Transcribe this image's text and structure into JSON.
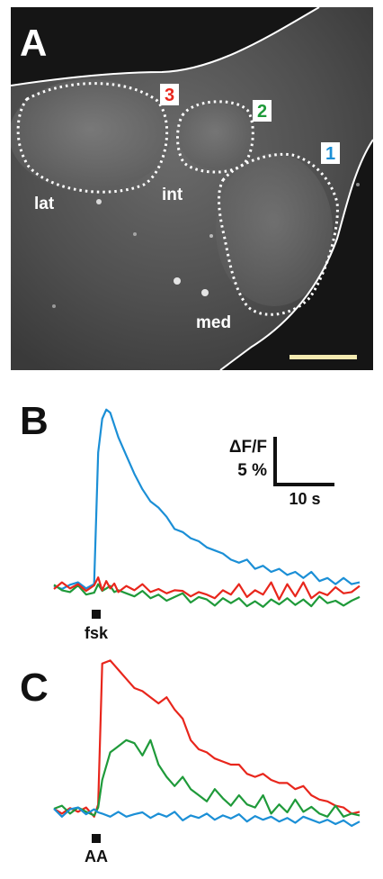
{
  "panels": {
    "a": {
      "label": "A",
      "region_labels": [
        "lat",
        "int",
        "med"
      ],
      "roi_labels": [
        {
          "text": "3",
          "color": "#e8261c"
        },
        {
          "text": "2",
          "color": "#1f9a3a"
        },
        {
          "text": "1",
          "color": "#1b8fd6"
        }
      ]
    },
    "b": {
      "label": "B",
      "stimulus_label": "fsk"
    },
    "c": {
      "label": "C",
      "stimulus_label": "AA"
    }
  },
  "scale_bar": {
    "y_label": "ΔF/F",
    "y_value": "5 %",
    "x_value": "10 s"
  },
  "colors": {
    "roi1": "#1b8fd6",
    "roi2": "#1f9a3a",
    "roi3": "#e8261c"
  },
  "chart_data": [
    {
      "type": "line",
      "panel": "B",
      "x_unit": "s",
      "y_unit": "% ΔF/F",
      "x": [
        0,
        2,
        4,
        6,
        8,
        10,
        11,
        12,
        13,
        14,
        15,
        16,
        18,
        20,
        22,
        24,
        26,
        28,
        30,
        32,
        34,
        36,
        38,
        40,
        42,
        44,
        46,
        48,
        50,
        52,
        54,
        56,
        58,
        60,
        62,
        64,
        66,
        68,
        70,
        72,
        74,
        76
      ],
      "stimulus_x": 10.5,
      "series": [
        {
          "color": "#1b8fd6",
          "values": [
            0.2,
            -0.3,
            0.4,
            0.8,
            -0.2,
            0.5,
            22.0,
            27.5,
            29.0,
            28.5,
            26.5,
            24.5,
            21.5,
            18.5,
            16.0,
            14.0,
            13.0,
            11.5,
            9.5,
            9.0,
            8.0,
            7.5,
            6.5,
            6.0,
            5.5,
            4.5,
            4.0,
            4.5,
            3.0,
            3.5,
            2.5,
            3.0,
            2.0,
            2.5,
            1.5,
            2.5,
            1.0,
            1.5,
            0.5,
            1.5,
            0.5,
            0.8
          ]
        },
        {
          "color": "#1f9a3a",
          "values": [
            0.4,
            -0.5,
            -0.8,
            0.3,
            -1.2,
            -0.9,
            0.5,
            -0.6,
            -0.2,
            0.2,
            -0.8,
            -0.5,
            -1.0,
            -1.5,
            -0.6,
            -1.8,
            -1.2,
            -2.2,
            -1.6,
            -1.0,
            -2.5,
            -1.6,
            -2.0,
            -3.0,
            -1.8,
            -2.6,
            -1.8,
            -3.1,
            -2.3,
            -3.2,
            -2.0,
            -2.8,
            -1.8,
            -2.9,
            -2.0,
            -3.1,
            -1.5,
            -2.6,
            -2.2,
            -3.0,
            -2.2,
            -1.6
          ]
        },
        {
          "color": "#e8261c",
          "values": [
            -0.3,
            0.8,
            -0.2,
            0.5,
            -0.6,
            0.3,
            1.6,
            -0.5,
            1.0,
            -0.2,
            0.6,
            -0.8,
            0.2,
            -0.5,
            0.5,
            -0.8,
            -0.3,
            -1.0,
            -0.5,
            -0.6,
            -1.5,
            -0.8,
            -1.2,
            -1.8,
            -0.5,
            -1.2,
            0.5,
            -1.6,
            -0.5,
            -1.2,
            0.8,
            -2.0,
            0.5,
            -1.5,
            0.8,
            -1.8,
            -0.8,
            -1.3,
            0.0,
            -1.0,
            -0.8,
            0.2
          ]
        }
      ]
    },
    {
      "type": "line",
      "panel": "C",
      "x_unit": "s",
      "y_unit": "% ΔF/F",
      "x": [
        0,
        2,
        4,
        6,
        8,
        10,
        11,
        12,
        14,
        16,
        18,
        20,
        22,
        24,
        26,
        28,
        30,
        32,
        34,
        36,
        38,
        40,
        42,
        44,
        46,
        48,
        50,
        52,
        54,
        56,
        58,
        60,
        62,
        64,
        66,
        68,
        70,
        72,
        74,
        76
      ],
      "stimulus_x": 10.5,
      "series": [
        {
          "color": "#e8261c",
          "values": [
            0.3,
            -0.5,
            0.4,
            -0.2,
            0.5,
            -1.0,
            1.0,
            24.0,
            24.5,
            23.0,
            21.5,
            20.0,
            19.5,
            18.5,
            17.5,
            18.5,
            16.5,
            15.0,
            11.5,
            10.0,
            9.5,
            8.5,
            8.0,
            7.5,
            7.5,
            6.0,
            5.5,
            6.0,
            5.0,
            4.5,
            4.5,
            3.5,
            4.0,
            2.5,
            1.8,
            1.5,
            0.8,
            0.5,
            -0.5,
            -0.2
          ]
        },
        {
          "color": "#1f9a3a",
          "values": [
            0.3,
            0.8,
            -0.5,
            0.5,
            -0.2,
            -0.8,
            0.5,
            5.0,
            9.5,
            10.5,
            11.5,
            11.0,
            9.0,
            11.5,
            7.5,
            5.5,
            4.0,
            5.5,
            3.5,
            2.5,
            1.5,
            3.5,
            2.0,
            0.8,
            2.5,
            1.0,
            0.5,
            2.5,
            -0.5,
            1.0,
            -0.3,
            1.8,
            -0.2,
            0.6,
            -0.5,
            -1.0,
            0.8,
            -1.0,
            -0.5,
            -0.8
          ]
        },
        {
          "color": "#1b8fd6",
          "values": [
            0.3,
            -1.0,
            0.2,
            0.5,
            -0.6,
            0.2,
            -0.3,
            -0.5,
            -1.0,
            -0.2,
            -1.0,
            -0.6,
            -0.3,
            -1.2,
            -0.5,
            -1.0,
            -0.2,
            -1.6,
            -0.8,
            -1.2,
            -0.5,
            -1.5,
            -0.8,
            -1.3,
            -0.6,
            -1.8,
            -0.9,
            -1.5,
            -1.0,
            -1.8,
            -1.2,
            -2.0,
            -1.0,
            -1.5,
            -2.0,
            -1.5,
            -2.2,
            -1.6,
            -2.5,
            -1.8
          ]
        }
      ]
    }
  ]
}
